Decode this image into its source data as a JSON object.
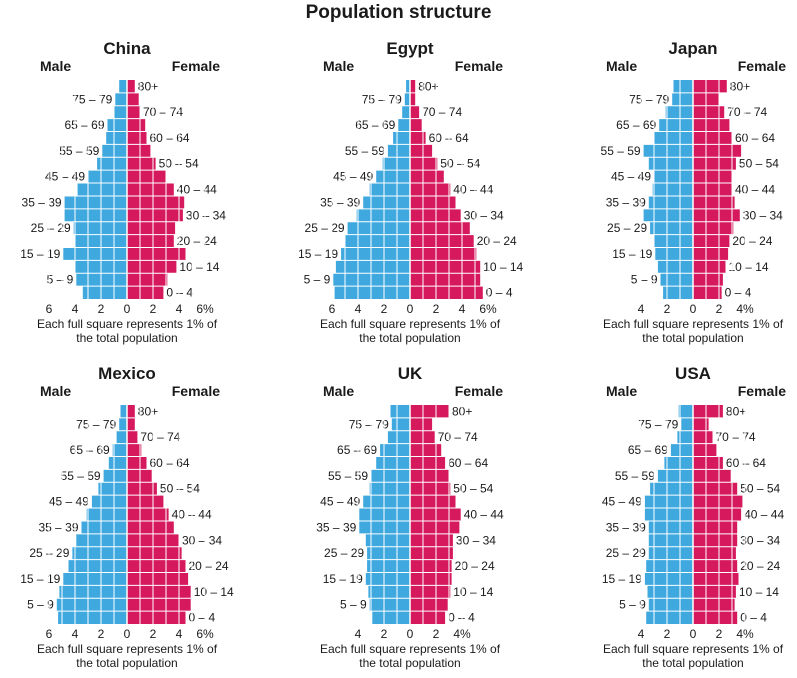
{
  "title": "Population structure",
  "chart_data": [
    {
      "type": "bar",
      "title": "China",
      "male_label": "Male",
      "female_label": "Female",
      "tick_labels": [
        "6",
        "4",
        "2",
        "0",
        "2",
        "4",
        "6%"
      ],
      "xlim": [
        -6,
        6
      ],
      "caption": [
        "Each full square represents 1% of",
        "the total population"
      ],
      "categories": [
        "0 – 4",
        "5 – 9",
        "10 – 14",
        "15 – 19",
        "20 – 24",
        "25 – 29",
        "30 – 34",
        "35 – 39",
        "40 – 44",
        "45 – 49",
        "50 – 54",
        "55 – 59",
        "60 – 64",
        "65 – 69",
        "70 – 74",
        "75 – 79",
        "80+"
      ],
      "series": [
        {
          "name": "Male",
          "color": "#3ea8df",
          "values": [
            3.4,
            3.9,
            4.0,
            4.9,
            4.0,
            4.1,
            4.8,
            4.8,
            3.8,
            3.0,
            2.3,
            1.9,
            1.6,
            1.5,
            1.0,
            0.9,
            0.6
          ]
        },
        {
          "name": "Female",
          "color": "#d6195d",
          "values": [
            2.8,
            3.1,
            3.8,
            4.5,
            3.6,
            3.7,
            4.3,
            4.4,
            3.6,
            3.0,
            2.2,
            1.8,
            1.5,
            1.4,
            1.0,
            0.9,
            0.6
          ]
        }
      ]
    },
    {
      "type": "bar",
      "title": "Egypt",
      "male_label": "Male",
      "female_label": "Female",
      "tick_labels": [
        "6",
        "4",
        "2",
        "0",
        "2",
        "4",
        "6%"
      ],
      "xlim": [
        -6,
        6
      ],
      "caption": [
        "Each full square represents 1% of",
        "the total population"
      ],
      "categories": [
        "0 – 4",
        "5 – 9",
        "10 – 14",
        "15 – 19",
        "20 – 24",
        "25 – 29",
        "30 – 34",
        "35 – 39",
        "40 – 44",
        "45 – 49",
        "50 – 54",
        "55 – 59",
        "60 – 64",
        "65 – 69",
        "70 – 74",
        "75 – 79",
        "80+"
      ],
      "series": [
        {
          "name": "Male",
          "color": "#3ea8df",
          "values": [
            5.8,
            5.9,
            5.7,
            5.3,
            5.0,
            4.8,
            4.1,
            3.6,
            3.1,
            2.6,
            2.1,
            1.7,
            1.3,
            0.9,
            0.6,
            0.4,
            0.3
          ]
        },
        {
          "name": "Female",
          "color": "#d6195d",
          "values": [
            5.6,
            5.4,
            5.4,
            5.1,
            4.9,
            4.6,
            3.9,
            3.5,
            3.1,
            2.6,
            2.1,
            1.7,
            1.2,
            0.9,
            0.7,
            0.4,
            0.4
          ]
        }
      ]
    },
    {
      "type": "bar",
      "title": "Japan",
      "male_label": "Male",
      "female_label": "Female",
      "tick_labels": [
        "4",
        "2",
        "0",
        "2",
        "4%"
      ],
      "xlim": [
        -4,
        4
      ],
      "caption": [
        "Each full square represents 1% of",
        "the total population"
      ],
      "categories": [
        "0 – 4",
        "5 – 9",
        "10 – 14",
        "15 – 19",
        "20 – 24",
        "25 – 29",
        "30 – 34",
        "35 – 39",
        "40 – 44",
        "45 – 49",
        "50 – 54",
        "55 – 59",
        "60 – 64",
        "65 – 69",
        "70 – 74",
        "75 – 79",
        "80+"
      ],
      "series": [
        {
          "name": "Male",
          "color": "#3ea8df",
          "values": [
            2.3,
            2.5,
            2.7,
            2.9,
            3.0,
            3.3,
            3.8,
            3.4,
            3.1,
            3.0,
            3.4,
            3.8,
            3.0,
            2.6,
            2.1,
            1.6,
            1.5
          ]
        },
        {
          "name": "Female",
          "color": "#d6195d",
          "values": [
            2.2,
            2.3,
            2.5,
            2.7,
            2.8,
            3.1,
            3.6,
            3.2,
            3.0,
            3.0,
            3.3,
            3.7,
            3.0,
            2.8,
            2.4,
            2.0,
            2.6
          ]
        }
      ]
    },
    {
      "type": "bar",
      "title": "Mexico",
      "male_label": "Male",
      "female_label": "Female",
      "tick_labels": [
        "6",
        "4",
        "2",
        "0",
        "2",
        "4",
        "6%"
      ],
      "xlim": [
        -6,
        6
      ],
      "caption": [
        "Each full square represents 1% of",
        "the total population"
      ],
      "categories": [
        "0 – 4",
        "5 – 9",
        "10 – 14",
        "15 – 19",
        "20 – 24",
        "25 – 29",
        "30 – 34",
        "35 – 39",
        "40 – 44",
        "45 – 49",
        "50 – 54",
        "55 – 59",
        "60 – 64",
        "65 – 69",
        "70 – 74",
        "75 – 79",
        "80+"
      ],
      "series": [
        {
          "name": "Male",
          "color": "#3ea8df",
          "values": [
            5.3,
            5.4,
            5.2,
            4.9,
            4.5,
            4.2,
            3.9,
            3.5,
            3.1,
            2.7,
            2.2,
            1.8,
            1.4,
            1.1,
            0.8,
            0.6,
            0.5
          ]
        },
        {
          "name": "Female",
          "color": "#d6195d",
          "values": [
            4.5,
            4.9,
            4.9,
            4.7,
            4.5,
            4.2,
            4.0,
            3.6,
            3.2,
            2.8,
            2.3,
            1.9,
            1.5,
            1.1,
            0.8,
            0.6,
            0.6
          ]
        }
      ]
    },
    {
      "type": "bar",
      "title": "UK",
      "male_label": "Male",
      "female_label": "Female",
      "tick_labels": [
        "4",
        "2",
        "0",
        "2",
        "4%"
      ],
      "xlim": [
        -4,
        4
      ],
      "caption": [
        "Each full square represents 1% of",
        "the total population"
      ],
      "categories": [
        "0 – 4",
        "5 – 9",
        "10 – 14",
        "15 – 19",
        "20 – 24",
        "25 – 29",
        "30 – 34",
        "35 – 39",
        "40 – 44",
        "45 – 49",
        "50 – 54",
        "55 – 59",
        "60 – 64",
        "65 – 69",
        "70 – 74",
        "75 – 79",
        "80+"
      ],
      "series": [
        {
          "name": "Male",
          "color": "#3ea8df",
          "values": [
            2.9,
            3.1,
            3.2,
            3.4,
            3.3,
            3.3,
            3.4,
            3.9,
            3.9,
            3.6,
            3.1,
            3.0,
            2.6,
            2.3,
            1.7,
            1.4,
            1.5
          ]
        },
        {
          "name": "Female",
          "color": "#d6195d",
          "values": [
            2.7,
            2.9,
            3.1,
            3.2,
            3.2,
            3.3,
            3.3,
            3.8,
            3.9,
            3.5,
            3.1,
            3.0,
            2.7,
            2.4,
            1.9,
            1.7,
            3.0
          ]
        }
      ]
    },
    {
      "type": "bar",
      "title": "USA",
      "male_label": "Male",
      "female_label": "Female",
      "tick_labels": [
        "4",
        "2",
        "0",
        "2",
        "4%"
      ],
      "xlim": [
        -4,
        4
      ],
      "caption": [
        "Each full square represents 1% of",
        "the total population"
      ],
      "categories": [
        "0 – 4",
        "5 – 9",
        "10 – 14",
        "15 – 19",
        "20 – 24",
        "25 – 29",
        "30 – 34",
        "35 – 39",
        "40 – 44",
        "45 – 49",
        "50 – 54",
        "55 – 59",
        "60 – 64",
        "65 – 69",
        "70 – 74",
        "75 – 79",
        "80+"
      ],
      "series": [
        {
          "name": "Male",
          "color": "#3ea8df",
          "values": [
            3.6,
            3.4,
            3.5,
            3.7,
            3.6,
            3.4,
            3.4,
            3.4,
            3.7,
            3.7,
            3.3,
            2.7,
            2.2,
            1.7,
            1.2,
            0.9,
            1.1
          ]
        },
        {
          "name": "Female",
          "color": "#d6195d",
          "values": [
            3.4,
            3.2,
            3.3,
            3.5,
            3.4,
            3.3,
            3.4,
            3.4,
            3.7,
            3.8,
            3.4,
            2.9,
            2.3,
            1.8,
            1.5,
            1.2,
            2.3
          ]
        }
      ]
    }
  ]
}
